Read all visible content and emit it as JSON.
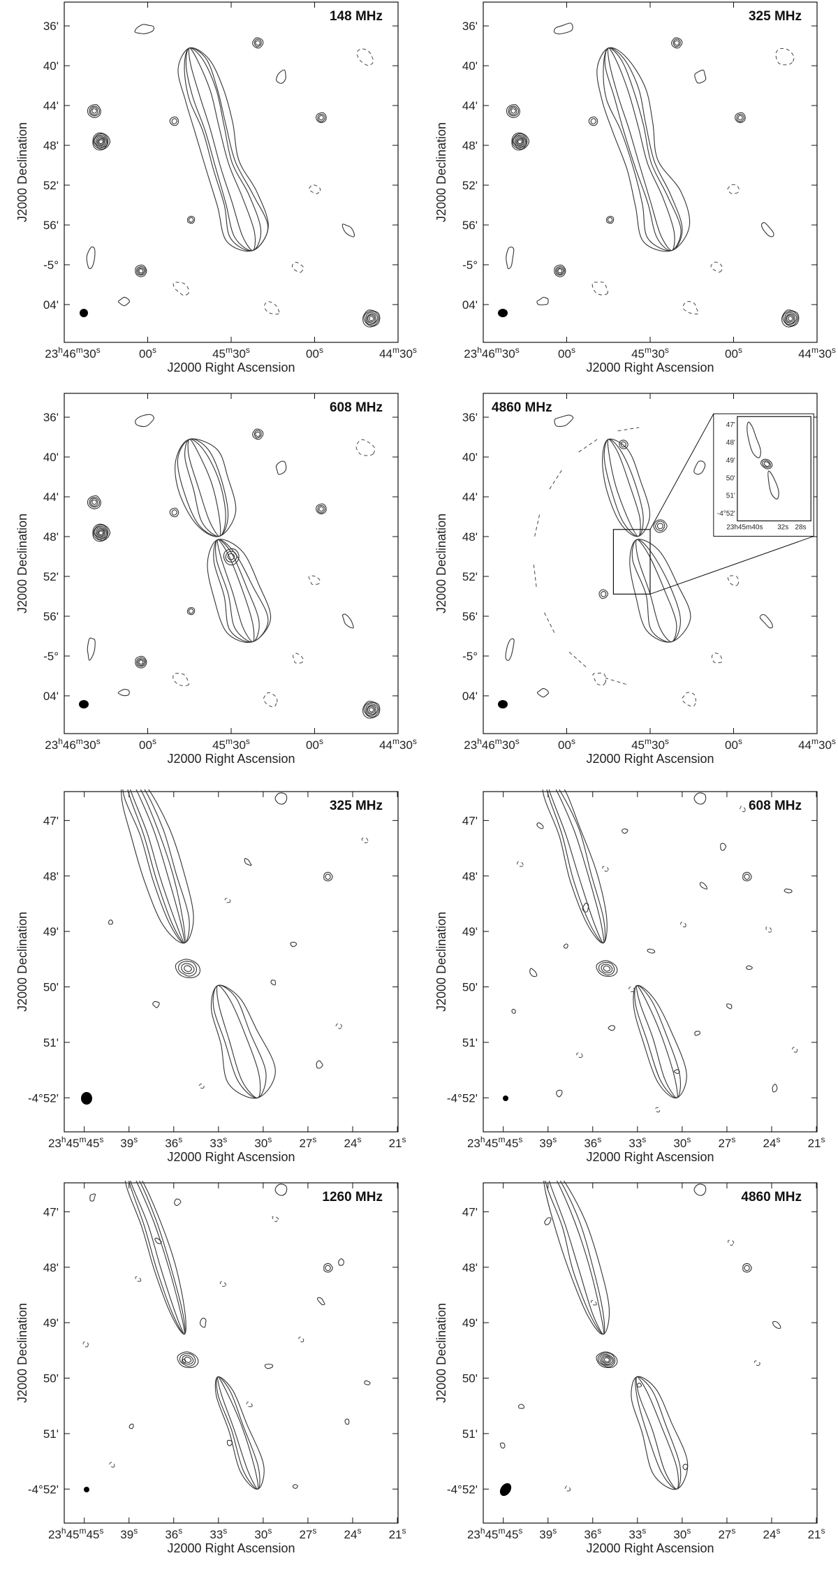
{
  "figure": {
    "axis_labels": {
      "x": "J2000 Right Ascension",
      "y": "J2000 Declination"
    }
  },
  "chart_data": [
    {
      "type": "contour",
      "frequency": "148 MHz",
      "xlabel": "J2000 Right Ascension",
      "ylabel": "J2000 Declination",
      "x_ticks": [
        "23h46m30s",
        "00s",
        "45m30s",
        "00s",
        "44m30s"
      ],
      "y_ticks": [
        "36'",
        "40'",
        "44'",
        "48'",
        "52'",
        "56'",
        "-5°",
        "04'"
      ],
      "beam": "filled ellipse, bottom-left"
    },
    {
      "type": "contour",
      "frequency": "325 MHz",
      "xlabel": "J2000 Right Ascension",
      "ylabel": "J2000 Declination",
      "x_ticks": [
        "23h46m30s",
        "00s",
        "45m30s",
        "00s",
        "44m30s"
      ],
      "y_ticks": [
        "36'",
        "40'",
        "44'",
        "48'",
        "52'",
        "56'",
        "-5°",
        "04'"
      ],
      "beam": "filled ellipse, bottom-left"
    },
    {
      "type": "contour",
      "frequency": "608 MHz",
      "xlabel": "J2000 Right Ascension",
      "ylabel": "J2000 Declination",
      "x_ticks": [
        "23h46m30s",
        "00s",
        "45m30s",
        "00s",
        "44m30s"
      ],
      "y_ticks": [
        "36'",
        "40'",
        "44'",
        "48'",
        "52'",
        "56'",
        "-5°",
        "04'"
      ],
      "beam": "filled ellipse, bottom-left"
    },
    {
      "type": "contour",
      "frequency": "4860 MHz",
      "xlabel": "J2000 Right Ascension",
      "ylabel": "J2000 Declination",
      "x_ticks": [
        "23h46m30s",
        "00s",
        "45m30s",
        "00s",
        "44m30s"
      ],
      "y_ticks": [
        "36'",
        "40'",
        "44'",
        "48'",
        "52'",
        "56'",
        "-5°",
        "04'"
      ],
      "beam": "filled ellipse, bottom-left",
      "inset": {
        "x_ticks": [
          "23h45m40s",
          "32s",
          "28s"
        ],
        "y_ticks": [
          "47'",
          "48'",
          "49'",
          "50'",
          "51'",
          "-4°52'"
        ]
      }
    },
    {
      "type": "contour",
      "frequency": "325 MHz",
      "xlabel": "J2000 Right Ascension",
      "ylabel": "J2000 Declination",
      "x_ticks": [
        "23h45m45s",
        "39s",
        "36s",
        "33s",
        "30s",
        "27s",
        "24s",
        "21s"
      ],
      "y_ticks": [
        "47'",
        "48'",
        "49'",
        "50'",
        "51'",
        "-4°52'"
      ],
      "beam": "filled ellipse, bottom-left"
    },
    {
      "type": "contour",
      "frequency": "608 MHz",
      "xlabel": "J2000 Right Ascension",
      "ylabel": "J2000 Declination",
      "x_ticks": [
        "23h45m45s",
        "39s",
        "36s",
        "33s",
        "30s",
        "27s",
        "24s",
        "21s"
      ],
      "y_ticks": [
        "47'",
        "48'",
        "49'",
        "50'",
        "51'",
        "-4°52'"
      ],
      "beam": "filled ellipse, bottom-left"
    },
    {
      "type": "contour",
      "frequency": "1260 MHz",
      "xlabel": "J2000 Right Ascension",
      "ylabel": "J2000 Declination",
      "x_ticks": [
        "23h45m45s",
        "39s",
        "36s",
        "33s",
        "30s",
        "27s",
        "24s",
        "21s"
      ],
      "y_ticks": [
        "47'",
        "48'",
        "49'",
        "50'",
        "51'",
        "-4°52'"
      ],
      "beam": "filled ellipse, bottom-left"
    },
    {
      "type": "contour",
      "frequency": "4860 MHz",
      "xlabel": "J2000 Right Ascension",
      "ylabel": "J2000 Declination",
      "x_ticks": [
        "23h45m45s",
        "39s",
        "36s",
        "33s",
        "30s",
        "27s",
        "24s",
        "21s"
      ],
      "y_ticks": [
        "47'",
        "48'",
        "49'",
        "50'",
        "51'",
        "-4°52'"
      ],
      "beam": "filled ellipse, bottom-left"
    }
  ]
}
